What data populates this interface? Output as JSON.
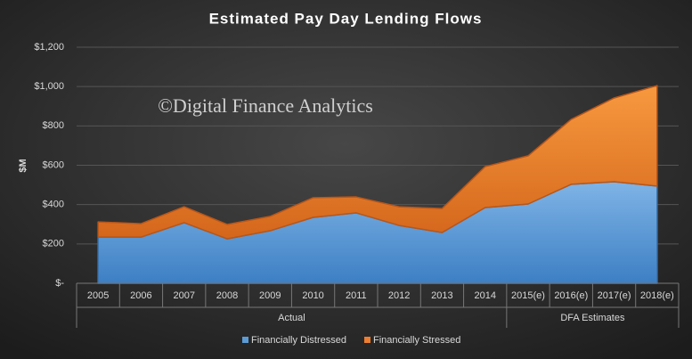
{
  "chart_data": {
    "type": "stacked-area",
    "title": "Estimated Pay Day Lending Flows",
    "y_label": "$M",
    "watermark": "©Digital Finance Analytics",
    "categories": [
      "2005",
      "2006",
      "2007",
      "2008",
      "2009",
      "2010",
      "2011",
      "2012",
      "2013",
      "2014",
      "2015(e)",
      "2016(e)",
      "2017(e)",
      "2018(e)"
    ],
    "groups": [
      "Actual",
      "DFA Estimates"
    ],
    "series": [
      {
        "name": "Financially Distressed",
        "color": "#5b9bd5",
        "values": [
          235,
          235,
          308,
          226,
          267,
          335,
          358,
          294,
          258,
          385,
          403,
          503,
          516,
          494
        ]
      },
      {
        "name": "Financially Stressed",
        "color": "#ed7d31",
        "values": [
          77,
          68,
          81,
          73,
          73,
          100,
          81,
          95,
          122,
          208,
          245,
          330,
          426,
          511
        ]
      }
    ],
    "ylim": [
      0,
      1200
    ],
    "yticks": [
      {
        "value": 0,
        "label": "$-"
      },
      {
        "value": 200,
        "label": "$200"
      },
      {
        "value": 400,
        "label": "$400"
      },
      {
        "value": 600,
        "label": "$600"
      },
      {
        "value": 800,
        "label": "$800"
      },
      {
        "value": 1000,
        "label": "$1,000"
      },
      {
        "value": 1200,
        "label": "$1,200"
      }
    ],
    "grid": true,
    "legend": "bottom"
  }
}
